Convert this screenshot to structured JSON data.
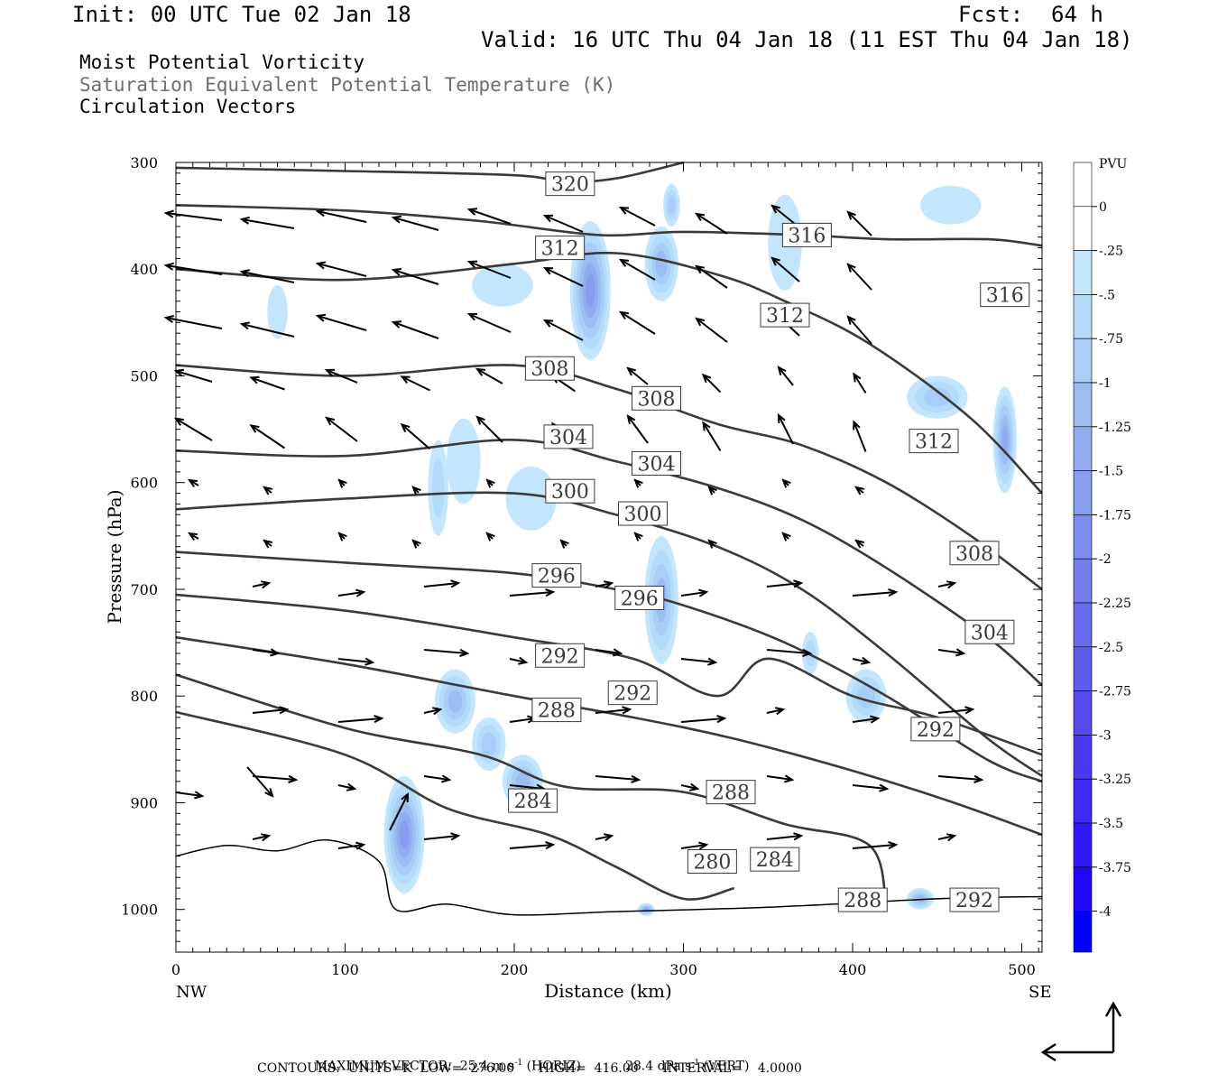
{
  "header": {
    "init": "Init: 00 UTC Tue 02 Jan 18",
    "fcst_label": "Fcst:",
    "fcst_value": "64 h",
    "valid": "Valid: 16 UTC Thu 04 Jan 18 (11 EST Thu 04 Jan 18)",
    "fields": [
      {
        "label": "Moist Potential Vorticity",
        "color": "#000000"
      },
      {
        "label": "Saturation Equivalent Potential Temperature (K)",
        "color": "#6e6e6e"
      },
      {
        "label": "Circulation Vectors",
        "color": "#000000"
      }
    ]
  },
  "footer": {
    "max_vector_label": "MAXIMUM VECTOR:",
    "max_horiz": "25.4 m s",
    "horiz_exp": "-1",
    "horiz_tag": "(HORIZ)",
    "max_vert": "28.4 dPa s",
    "vert_exp": "-1",
    "vert_tag": "(VERT)",
    "contours": "CONTOURS:  UNITS=K  LOW=  276.00      HIGH=  416.00      INTERVAL=    4.0000"
  },
  "colorbar": {
    "unit": "PVU",
    "labels": [
      "0",
      "-.25",
      "-.5",
      "-.75",
      "-1",
      "-1.25",
      "-1.5",
      "-1.75",
      "-2",
      "-2.25",
      "-2.5",
      "-2.75",
      "-3",
      "-3.25",
      "-3.5",
      "-3.75",
      "-4"
    ],
    "colors": [
      "#ffffff",
      "#c4e6fc",
      "#b3dbfa",
      "#a8cdf6",
      "#9cbdf2",
      "#91adef",
      "#879ded",
      "#7d8deb",
      "#737ce9",
      "#696cea",
      "#5f5cea",
      "#554bec",
      "#4a3aee",
      "#3e2af2",
      "#3019f6",
      "#2009fa",
      "#0c00ff"
    ]
  },
  "chart_data": {
    "type": "cross-section",
    "title": "",
    "xlabel": "Distance (km)",
    "ylabel": "Pressure (hPa)",
    "xlim": [
      0,
      512
    ],
    "ylim": [
      1040,
      300
    ],
    "xticks": [
      0,
      100,
      200,
      300,
      400,
      500
    ],
    "yticks": [
      300,
      400,
      500,
      600,
      700,
      800,
      900,
      1000
    ],
    "x_end_labels": {
      "left": "NW",
      "right": "SE"
    },
    "contour_labels": [
      {
        "value": "320",
        "x": 233,
        "p": 320
      },
      {
        "value": "316",
        "x": 373,
        "p": 368
      },
      {
        "value": "316",
        "x": 490,
        "p": 424
      },
      {
        "value": "312",
        "x": 227,
        "p": 380
      },
      {
        "value": "312",
        "x": 360,
        "p": 443
      },
      {
        "value": "312",
        "x": 448,
        "p": 561
      },
      {
        "value": "308",
        "x": 221,
        "p": 493
      },
      {
        "value": "308",
        "x": 284,
        "p": 521
      },
      {
        "value": "308",
        "x": 472,
        "p": 666
      },
      {
        "value": "304",
        "x": 232,
        "p": 557
      },
      {
        "value": "304",
        "x": 284,
        "p": 582
      },
      {
        "value": "304",
        "x": 481,
        "p": 740
      },
      {
        "value": "300",
        "x": 233,
        "p": 608
      },
      {
        "value": "300",
        "x": 276,
        "p": 629
      },
      {
        "value": "296",
        "x": 225,
        "p": 687
      },
      {
        "value": "296",
        "x": 274,
        "p": 708
      },
      {
        "value": "292",
        "x": 227,
        "p": 762
      },
      {
        "value": "292",
        "x": 270,
        "p": 797
      },
      {
        "value": "292",
        "x": 449,
        "p": 831
      },
      {
        "value": "288",
        "x": 225,
        "p": 813
      },
      {
        "value": "288",
        "x": 328,
        "p": 890
      },
      {
        "value": "284",
        "x": 211,
        "p": 898
      },
      {
        "value": "284",
        "x": 354,
        "p": 953
      },
      {
        "value": "280",
        "x": 317,
        "p": 955
      },
      {
        "value": "288",
        "x": 406,
        "p": 991
      },
      {
        "value": "292",
        "x": 472,
        "p": 991
      }
    ],
    "isentropes": [
      {
        "theta": 320,
        "points": [
          [
            0,
            305
          ],
          [
            100,
            308
          ],
          [
            200,
            312
          ],
          [
            230,
            318
          ],
          [
            260,
            315
          ],
          [
            300,
            300
          ]
        ]
      },
      {
        "theta": 316,
        "points": [
          [
            0,
            340
          ],
          [
            100,
            345
          ],
          [
            180,
            355
          ],
          [
            250,
            368
          ],
          [
            300,
            365
          ],
          [
            370,
            368
          ],
          [
            420,
            372
          ],
          [
            480,
            372
          ],
          [
            512,
            378
          ]
        ]
      },
      {
        "theta": 312,
        "points": [
          [
            0,
            400
          ],
          [
            100,
            410
          ],
          [
            200,
            395
          ],
          [
            260,
            385
          ],
          [
            320,
            405
          ],
          [
            360,
            430
          ],
          [
            410,
            470
          ],
          [
            470,
            540
          ],
          [
            512,
            610
          ]
        ]
      },
      {
        "theta": 308,
        "points": [
          [
            0,
            490
          ],
          [
            100,
            500
          ],
          [
            200,
            490
          ],
          [
            260,
            512
          ],
          [
            320,
            545
          ],
          [
            370,
            565
          ],
          [
            420,
            600
          ],
          [
            470,
            650
          ],
          [
            512,
            700
          ]
        ]
      },
      {
        "theta": 304,
        "points": [
          [
            0,
            570
          ],
          [
            100,
            575
          ],
          [
            200,
            560
          ],
          [
            260,
            580
          ],
          [
            320,
            605
          ],
          [
            370,
            635
          ],
          [
            420,
            680
          ],
          [
            480,
            745
          ],
          [
            512,
            790
          ]
        ]
      },
      {
        "theta": 300,
        "points": [
          [
            0,
            625
          ],
          [
            100,
            615
          ],
          [
            200,
            610
          ],
          [
            260,
            630
          ],
          [
            320,
            660
          ],
          [
            370,
            700
          ],
          [
            420,
            760
          ],
          [
            480,
            840
          ],
          [
            512,
            875
          ]
        ]
      },
      {
        "theta": 296,
        "points": [
          [
            0,
            665
          ],
          [
            100,
            675
          ],
          [
            200,
            685
          ],
          [
            260,
            700
          ],
          [
            300,
            715
          ],
          [
            360,
            750
          ],
          [
            420,
            800
          ],
          [
            480,
            860
          ],
          [
            512,
            880
          ]
        ]
      },
      {
        "theta": 292,
        "points": [
          [
            0,
            705
          ],
          [
            100,
            720
          ],
          [
            200,
            745
          ],
          [
            270,
            765
          ],
          [
            320,
            800
          ],
          [
            350,
            765
          ],
          [
            400,
            800
          ],
          [
            450,
            820
          ],
          [
            512,
            855
          ]
        ]
      },
      {
        "theta": 288,
        "points": [
          [
            0,
            745
          ],
          [
            100,
            770
          ],
          [
            200,
            800
          ],
          [
            270,
            820
          ],
          [
            330,
            840
          ],
          [
            400,
            870
          ],
          [
            460,
            900
          ],
          [
            512,
            930
          ]
        ]
      },
      {
        "theta": 284,
        "points": [
          [
            0,
            780
          ],
          [
            100,
            830
          ],
          [
            180,
            855
          ],
          [
            230,
            885
          ],
          [
            300,
            890
          ],
          [
            360,
            920
          ],
          [
            410,
            940
          ],
          [
            420,
            1000
          ]
        ]
      },
      {
        "theta": 280,
        "points": [
          [
            0,
            815
          ],
          [
            100,
            855
          ],
          [
            160,
            905
          ],
          [
            220,
            930
          ],
          [
            260,
            960
          ],
          [
            300,
            990
          ],
          [
            330,
            980
          ]
        ]
      }
    ],
    "terrain_hpa": [
      [
        0,
        950
      ],
      [
        30,
        940
      ],
      [
        60,
        945
      ],
      [
        90,
        935
      ],
      [
        120,
        955
      ],
      [
        130,
        1000
      ],
      [
        160,
        995
      ],
      [
        200,
        1005
      ],
      [
        260,
        1002
      ],
      [
        350,
        998
      ],
      [
        450,
        990
      ],
      [
        512,
        988
      ]
    ],
    "mpv_regions": [
      {
        "x": 245,
        "p": 420,
        "rx": 12,
        "rp": 65,
        "level": 6
      },
      {
        "x": 287,
        "p": 395,
        "rx": 10,
        "rp": 35,
        "level": 4
      },
      {
        "x": 293,
        "p": 340,
        "rx": 5,
        "rp": 20,
        "level": 3
      },
      {
        "x": 193,
        "p": 415,
        "rx": 18,
        "rp": 20,
        "level": 1
      },
      {
        "x": 170,
        "p": 580,
        "rx": 10,
        "rp": 40,
        "level": 1
      },
      {
        "x": 155,
        "p": 605,
        "rx": 6,
        "rp": 45,
        "level": 2
      },
      {
        "x": 210,
        "p": 615,
        "rx": 15,
        "rp": 30,
        "level": 1
      },
      {
        "x": 287,
        "p": 710,
        "rx": 10,
        "rp": 60,
        "level": 4
      },
      {
        "x": 165,
        "p": 805,
        "rx": 12,
        "rp": 30,
        "level": 4
      },
      {
        "x": 185,
        "p": 845,
        "rx": 10,
        "rp": 25,
        "level": 3
      },
      {
        "x": 205,
        "p": 880,
        "rx": 12,
        "rp": 25,
        "level": 4
      },
      {
        "x": 135,
        "p": 930,
        "rx": 12,
        "rp": 55,
        "level": 6
      },
      {
        "x": 408,
        "p": 800,
        "rx": 12,
        "rp": 25,
        "level": 3
      },
      {
        "x": 375,
        "p": 760,
        "rx": 5,
        "rp": 20,
        "level": 2
      },
      {
        "x": 490,
        "p": 560,
        "rx": 7,
        "rp": 50,
        "level": 5
      },
      {
        "x": 450,
        "p": 520,
        "rx": 18,
        "rp": 20,
        "level": 3
      },
      {
        "x": 458,
        "p": 340,
        "rx": 18,
        "rp": 18,
        "level": 1
      },
      {
        "x": 360,
        "p": 375,
        "rx": 10,
        "rp": 45,
        "level": 1
      },
      {
        "x": 60,
        "p": 440,
        "rx": 6,
        "rp": 25,
        "level": 1
      },
      {
        "x": 278,
        "p": 1000,
        "rx": 5,
        "rp": 6,
        "level": 5
      },
      {
        "x": 440,
        "p": 990,
        "rx": 8,
        "rp": 10,
        "level": 4
      }
    ]
  }
}
